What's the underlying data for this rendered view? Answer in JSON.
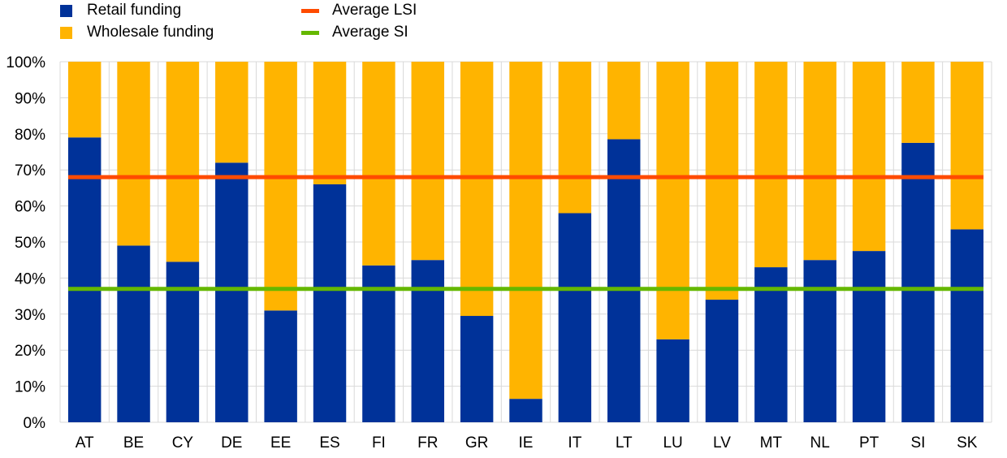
{
  "chart_data": {
    "type": "bar",
    "stacked": true,
    "categories": [
      "AT",
      "BE",
      "CY",
      "DE",
      "EE",
      "ES",
      "FI",
      "FR",
      "GR",
      "IE",
      "IT",
      "LT",
      "LU",
      "LV",
      "MT",
      "NL",
      "PT",
      "SI",
      "SK"
    ],
    "series": [
      {
        "name": "Retail funding",
        "color": "#003299",
        "values": [
          79,
          49,
          44.5,
          72,
          31,
          66,
          43.5,
          45,
          29.5,
          6.5,
          58,
          78.5,
          23,
          34,
          43,
          45,
          47.5,
          77.5,
          53.5
        ]
      },
      {
        "name": "Wholesale funding",
        "color": "#ffb400",
        "values": [
          21,
          51,
          55.5,
          28,
          69,
          34,
          56.5,
          55,
          70.5,
          93.5,
          42,
          21.5,
          77,
          66,
          57,
          55,
          52.5,
          22.5,
          46.5
        ]
      }
    ],
    "lines": [
      {
        "name": "Average LSI",
        "color": "#ff4b00",
        "value": 68
      },
      {
        "name": "Average SI",
        "color": "#65b800",
        "value": 37
      }
    ],
    "ylim": [
      0,
      100
    ],
    "yticks": [
      "0%",
      "10%",
      "20%",
      "30%",
      "40%",
      "50%",
      "60%",
      "70%",
      "80%",
      "90%",
      "100%"
    ],
    "grid": true,
    "legend_position": "top-left"
  }
}
